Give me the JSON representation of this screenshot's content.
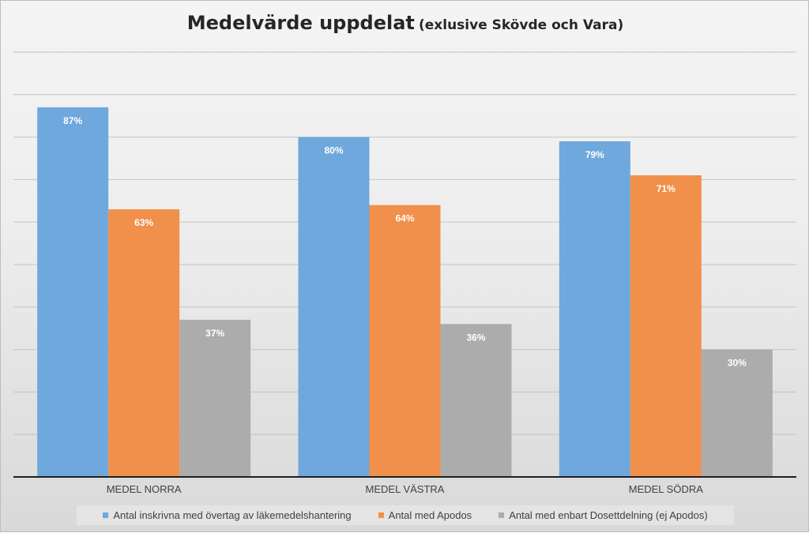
{
  "chart_data": {
    "type": "bar",
    "title": "Medelvärde uppdelat",
    "subtitle": "(exlusive Skövde och Vara)",
    "categories": [
      "MEDEL NORRA",
      "MEDEL VÄSTRA",
      "MEDEL SÖDRA"
    ],
    "series": [
      {
        "name": "Antal inskrivna med övertag av läkemedelshantering",
        "values": [
          87,
          80,
          79
        ],
        "labels": [
          "87%",
          "80%",
          "79%"
        ],
        "color": "#6fa8dc"
      },
      {
        "name": "Antal med Apodos",
        "values": [
          63,
          64,
          71
        ],
        "labels": [
          "63%",
          "64%",
          "71%"
        ],
        "color": "#f0904a"
      },
      {
        "name": "Antal med enbart Dosettdelning (ej Apodos)",
        "values": [
          37,
          36,
          30
        ],
        "labels": [
          "37%",
          "36%",
          "30%"
        ],
        "color": "#acacac"
      }
    ],
    "ylim": [
      0,
      100
    ],
    "grid": true,
    "legend_position": "bottom"
  }
}
